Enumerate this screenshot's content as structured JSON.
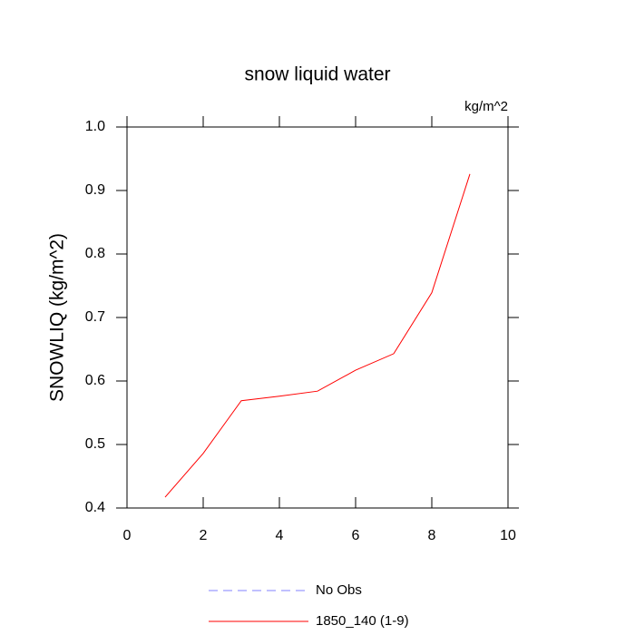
{
  "chart_data": {
    "type": "line",
    "title": "snow liquid water",
    "units": "kg/m^2",
    "y_label": "SNOWLIQ  (kg/m^2)",
    "x": [
      1,
      2,
      3,
      4,
      5,
      6,
      7,
      8,
      9
    ],
    "series": [
      {
        "name": "No Obs",
        "color": "#8080ff",
        "dashed": true,
        "values": [
          null,
          null,
          null,
          null,
          null,
          null,
          null,
          null,
          null
        ]
      },
      {
        "name": "1850_140 (1-9)",
        "color": "#ff0000",
        "dashed": false,
        "values": [
          0.417,
          0.486,
          0.569,
          0.576,
          0.584,
          0.617,
          0.643,
          0.739,
          0.926
        ]
      }
    ],
    "xlim": [
      0,
      10
    ],
    "xticks": [
      0,
      2,
      4,
      6,
      8,
      10
    ],
    "ylim": [
      0.4,
      1.0
    ],
    "yticks": [
      0.4,
      0.5,
      0.6,
      0.7,
      0.8,
      0.9,
      {
        "value": 1,
        "label": "1.0"
      }
    ]
  }
}
